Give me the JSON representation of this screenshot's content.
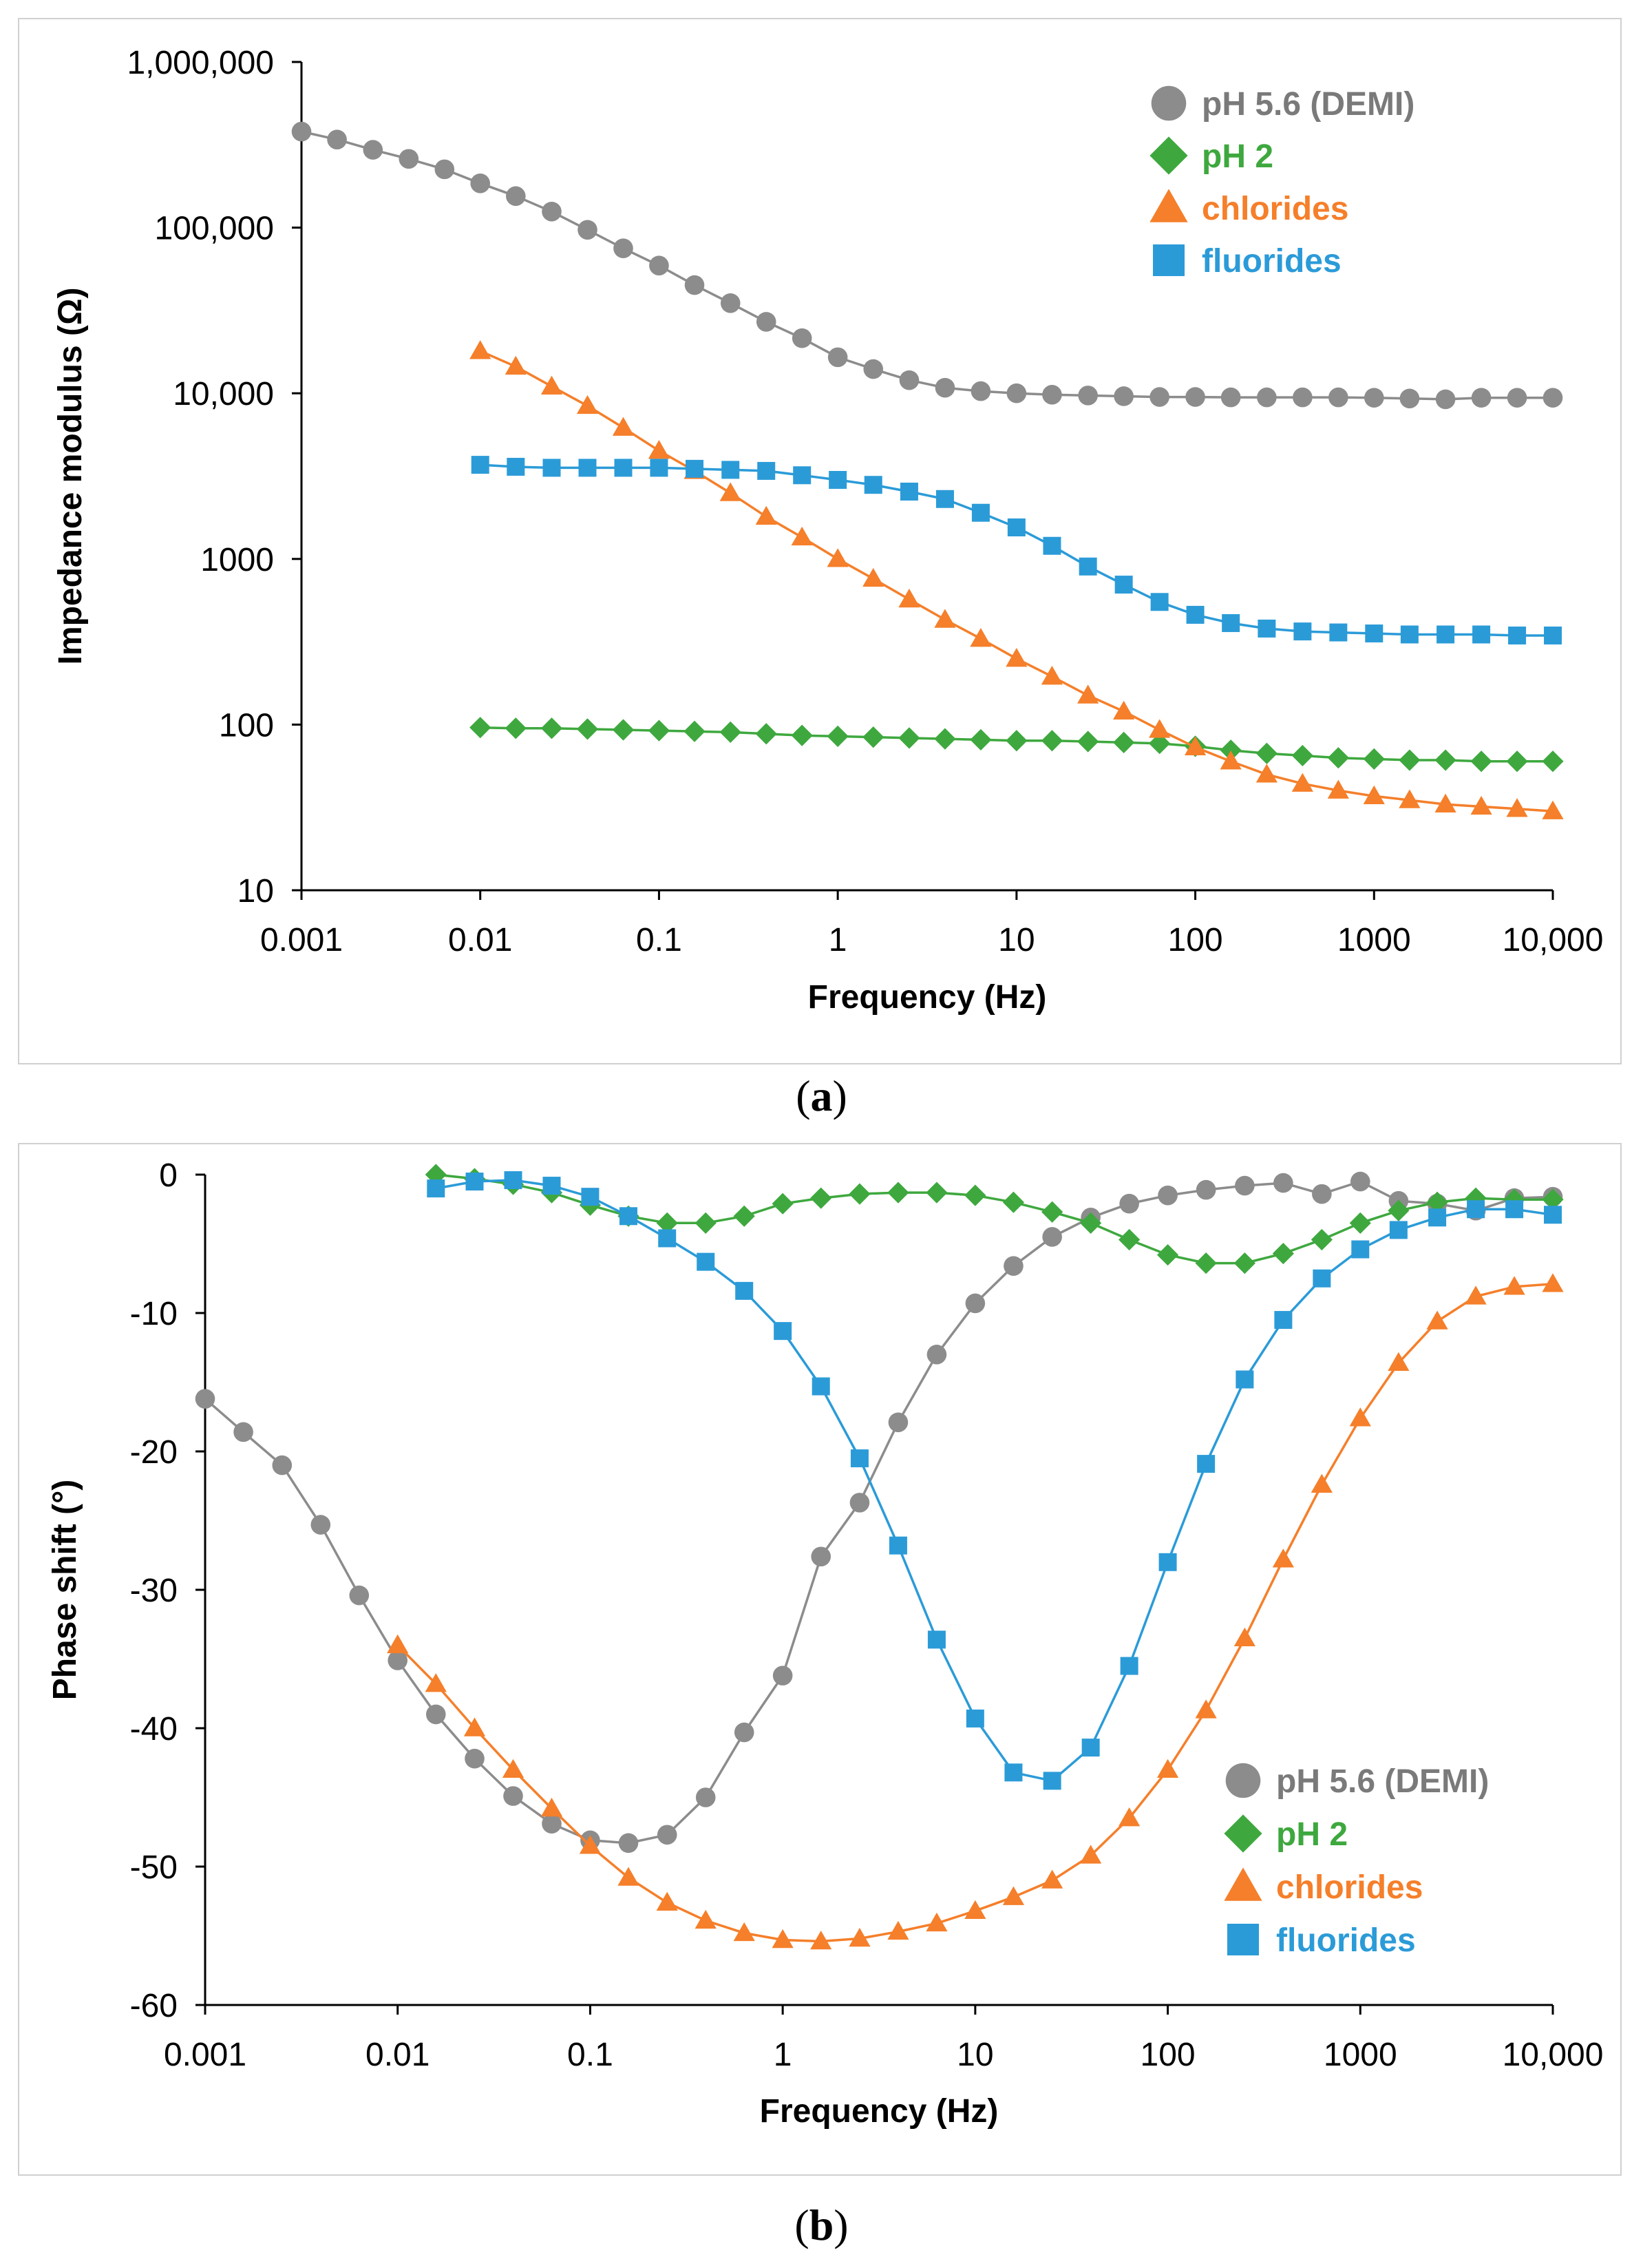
{
  "chart_data": [
    {
      "id": "a",
      "panel_label": "a",
      "type": "scatter",
      "scale": "log-log",
      "title": "",
      "xlabel": "Frequency (Hz)",
      "ylabel": "Impedance modulus (Ω)",
      "xlim": [
        0.001,
        10000
      ],
      "ylim": [
        10,
        1000000
      ],
      "x_ticks": [
        0.001,
        0.01,
        0.1,
        1,
        10,
        100,
        1000,
        10000
      ],
      "x_tick_labels": [
        "0.001",
        "0.01",
        "0.1",
        "1",
        "10",
        "100",
        "1000",
        "10,000"
      ],
      "y_ticks": [
        10,
        100,
        1000,
        10000,
        100000,
        1000000
      ],
      "y_tick_labels": [
        "10",
        "100",
        "1000",
        "10,000",
        "100,000",
        "1,000,000"
      ],
      "legend_position": "top-right",
      "series": [
        {
          "name": "pH 5.6 (DEMI)",
          "color": "#8c8c8c",
          "marker": "circle",
          "x": [
            0.001,
            0.00158,
            0.00251,
            0.00398,
            0.00631,
            0.01,
            0.0158,
            0.0251,
            0.0398,
            0.0631,
            0.1,
            0.158,
            0.251,
            0.398,
            0.631,
            1,
            1.58,
            2.51,
            3.98,
            6.31,
            10,
            15.8,
            25.1,
            39.8,
            63.1,
            100,
            158,
            251,
            398,
            631,
            1000,
            1580,
            2510,
            3980,
            6310,
            10000
          ],
          "y": [
            380000,
            340000,
            295000,
            260000,
            225000,
            185000,
            155000,
            125000,
            97000,
            75000,
            59000,
            45000,
            35000,
            27000,
            21500,
            16500,
            14000,
            12000,
            10800,
            10300,
            10000,
            9800,
            9700,
            9600,
            9500,
            9500,
            9450,
            9450,
            9450,
            9450,
            9400,
            9300,
            9200,
            9400,
            9400,
            9400
          ]
        },
        {
          "name": "pH 2",
          "color": "#3ea83e",
          "marker": "diamond",
          "x": [
            0.01,
            0.0158,
            0.0251,
            0.0398,
            0.0631,
            0.1,
            0.158,
            0.251,
            0.398,
            0.631,
            1,
            1.58,
            2.51,
            3.98,
            6.31,
            10,
            15.8,
            25.1,
            39.8,
            63.1,
            100,
            158,
            251,
            398,
            631,
            1000,
            1580,
            2510,
            3980,
            6310,
            10000
          ],
          "y": [
            96,
            95,
            95,
            94,
            93,
            92,
            91,
            90,
            88,
            86,
            85,
            84,
            83,
            82,
            81,
            80,
            80,
            79,
            78,
            77,
            74,
            70,
            67,
            65,
            63,
            62,
            61,
            61,
            60,
            60,
            60
          ]
        },
        {
          "name": "chlorides",
          "color": "#f57f2a",
          "marker": "triangle",
          "x": [
            0.01,
            0.0158,
            0.0251,
            0.0398,
            0.0631,
            0.1,
            0.158,
            0.251,
            0.398,
            0.631,
            1,
            1.58,
            2.51,
            3.98,
            6.31,
            10,
            15.8,
            25.1,
            39.8,
            63.1,
            100,
            158,
            251,
            398,
            631,
            1000,
            1580,
            2510,
            3980,
            6310,
            10000
          ],
          "y": [
            18000,
            14500,
            11000,
            8400,
            6200,
            4500,
            3400,
            2500,
            1800,
            1350,
            1000,
            760,
            570,
            430,
            330,
            250,
            195,
            150,
            120,
            93,
            73,
            60,
            50,
            44,
            40,
            37,
            35,
            33,
            32,
            31,
            30
          ]
        },
        {
          "name": "fluorides",
          "color": "#2b9bd8",
          "marker": "square",
          "x": [
            0.01,
            0.0158,
            0.0251,
            0.0398,
            0.0631,
            0.1,
            0.158,
            0.251,
            0.398,
            0.631,
            1,
            1.58,
            2.51,
            3.98,
            6.31,
            10,
            15.8,
            25.1,
            39.8,
            63.1,
            100,
            158,
            251,
            398,
            631,
            1000,
            1580,
            2510,
            3980,
            6310,
            10000
          ],
          "y": [
            3700,
            3600,
            3550,
            3550,
            3550,
            3550,
            3500,
            3450,
            3400,
            3200,
            3000,
            2800,
            2550,
            2300,
            1900,
            1550,
            1200,
            900,
            700,
            550,
            460,
            410,
            380,
            365,
            360,
            355,
            350,
            350,
            350,
            345,
            345
          ]
        }
      ]
    },
    {
      "id": "b",
      "panel_label": "b",
      "type": "scatter",
      "scale": "log-x",
      "title": "",
      "xlabel": "Frequency (Hz)",
      "ylabel": "Phase shift (°)",
      "xlim": [
        0.001,
        10000
      ],
      "ylim": [
        -60,
        0
      ],
      "x_ticks": [
        0.001,
        0.01,
        0.1,
        1,
        10,
        100,
        1000,
        10000
      ],
      "x_tick_labels": [
        "0.001",
        "0.01",
        "0.1",
        "1",
        "10",
        "100",
        "1000",
        "10,000"
      ],
      "y_ticks": [
        0,
        -10,
        -20,
        -30,
        -40,
        -50,
        -60
      ],
      "y_tick_labels": [
        "0",
        "-10",
        "-20",
        "-30",
        "-40",
        "-50",
        "-60"
      ],
      "legend_position": "bottom-right",
      "series": [
        {
          "name": "pH 5.6 (DEMI)",
          "color": "#8c8c8c",
          "marker": "circle",
          "x": [
            0.001,
            0.00158,
            0.00251,
            0.00398,
            0.00631,
            0.01,
            0.0158,
            0.0251,
            0.0398,
            0.0631,
            0.1,
            0.158,
            0.251,
            0.398,
            0.631,
            1,
            1.58,
            2.51,
            3.98,
            6.31,
            10,
            15.8,
            25.1,
            39.8,
            63.1,
            100,
            158,
            251,
            398,
            631,
            1000,
            1580,
            2510,
            3980,
            6310,
            10000
          ],
          "y": [
            -16.2,
            -18.6,
            -21.0,
            -25.3,
            -30.4,
            -35.1,
            -39.0,
            -42.2,
            -44.9,
            -46.9,
            -48.1,
            -48.3,
            -47.7,
            -45.0,
            -40.3,
            -36.2,
            -27.6,
            -23.7,
            -17.9,
            -13.0,
            -9.3,
            -6.6,
            -4.5,
            -3.1,
            -2.1,
            -1.5,
            -1.1,
            -0.8,
            -0.6,
            -1.4,
            -0.5,
            -1.9,
            -2.1,
            -2.6,
            -1.7,
            -1.6
          ]
        },
        {
          "name": "pH 2",
          "color": "#3ea83e",
          "marker": "diamond",
          "x": [
            0.0158,
            0.0251,
            0.0398,
            0.0631,
            0.1,
            0.158,
            0.251,
            0.398,
            0.631,
            1,
            1.58,
            2.51,
            3.98,
            6.31,
            10,
            15.8,
            25.1,
            39.8,
            63.1,
            100,
            158,
            251,
            398,
            631,
            1000,
            1580,
            2510,
            3980,
            6310,
            10000
          ],
          "y": [
            0,
            -0.3,
            -0.7,
            -1.3,
            -2.2,
            -3.0,
            -3.5,
            -3.5,
            -3.0,
            -2.1,
            -1.7,
            -1.4,
            -1.3,
            -1.3,
            -1.5,
            -2.0,
            -2.7,
            -3.5,
            -4.7,
            -5.8,
            -6.4,
            -6.4,
            -5.7,
            -4.7,
            -3.5,
            -2.6,
            -2.0,
            -1.7,
            -1.8,
            -1.8
          ]
        },
        {
          "name": "chlorides",
          "color": "#f57f2a",
          "marker": "triangle",
          "x": [
            0.01,
            0.0158,
            0.0251,
            0.0398,
            0.0631,
            0.1,
            0.158,
            0.251,
            0.398,
            0.631,
            1,
            1.58,
            2.51,
            3.98,
            6.31,
            10,
            15.8,
            25.1,
            39.8,
            63.1,
            100,
            158,
            251,
            398,
            631,
            1000,
            1580,
            2510,
            3980,
            6310,
            10000
          ],
          "y": [
            -34.0,
            -36.8,
            -40.0,
            -43.0,
            -45.8,
            -48.5,
            -50.8,
            -52.6,
            -53.9,
            -54.8,
            -55.3,
            -55.4,
            -55.2,
            -54.7,
            -54.1,
            -53.2,
            -52.2,
            -51.0,
            -49.2,
            -46.5,
            -43.0,
            -38.7,
            -33.5,
            -27.8,
            -22.4,
            -17.6,
            -13.6,
            -10.6,
            -8.8,
            -8.1,
            -7.9
          ]
        },
        {
          "name": "fluorides",
          "color": "#2b9bd8",
          "marker": "square",
          "x": [
            0.0158,
            0.0251,
            0.0398,
            0.0631,
            0.1,
            0.158,
            0.251,
            0.398,
            0.631,
            1,
            1.58,
            2.51,
            3.98,
            6.31,
            10,
            15.8,
            25.1,
            39.8,
            63.1,
            100,
            158,
            251,
            398,
            631,
            1000,
            1580,
            2510,
            3980,
            6310,
            10000
          ],
          "y": [
            -1.0,
            -0.5,
            -0.4,
            -0.8,
            -1.6,
            -3.0,
            -4.6,
            -6.3,
            -8.4,
            -11.3,
            -15.3,
            -20.5,
            -26.8,
            -33.6,
            -39.3,
            -43.2,
            -43.8,
            -41.4,
            -35.5,
            -28.0,
            -20.9,
            -14.8,
            -10.5,
            -7.5,
            -5.4,
            -4.0,
            -3.1,
            -2.5,
            -2.5,
            -2.9
          ]
        }
      ]
    }
  ]
}
